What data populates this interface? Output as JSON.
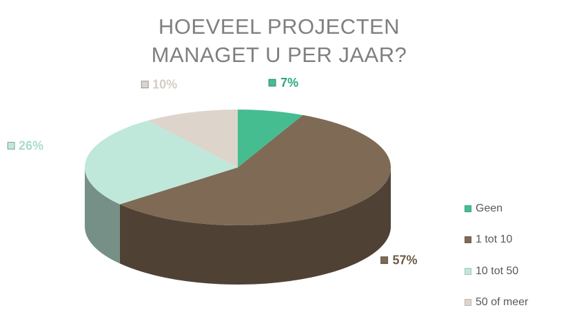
{
  "chart_data": {
    "type": "pie",
    "title_lines": [
      "HOEVEEL PROJECTEN",
      "MANAGET U PER JAAR?"
    ],
    "categories": [
      "Geen",
      "1 tot 10",
      "10 tot 50",
      "50 of meer"
    ],
    "values": [
      7,
      57,
      26,
      10
    ],
    "data_labels": [
      "7%",
      "57%",
      "26%",
      "10%"
    ],
    "colors": [
      "#46bd91",
      "#7f6a56",
      "#bfe8da",
      "#ddd5cc"
    ],
    "label_colors": [
      "#2ca77c",
      "#6f5a46",
      "#a9dccb",
      "#d5cdc3"
    ],
    "legend_position": "right",
    "style": "3d"
  }
}
